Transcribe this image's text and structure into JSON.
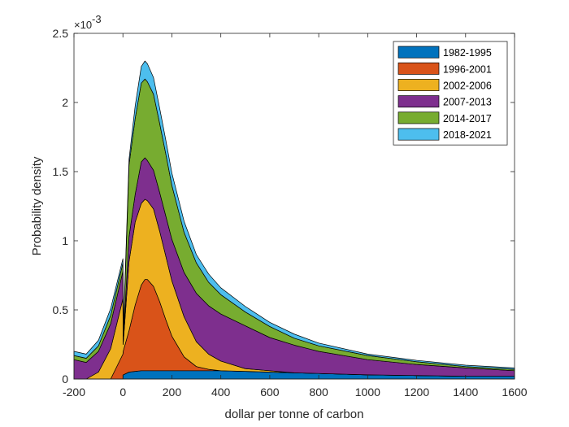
{
  "chart_data": {
    "type": "area",
    "stacked": true,
    "title": "",
    "xlabel": "dollar per tonne of carbon",
    "ylabel": "Probability density",
    "xlim": [
      -200,
      1600
    ],
    "ylim": [
      0,
      0.0025
    ],
    "xticks": [
      -200,
      0,
      200,
      400,
      600,
      800,
      1000,
      1200,
      1400,
      1600
    ],
    "xtick_labels": [
      "-200",
      "0",
      "200",
      "400",
      "600",
      "800",
      "1000",
      "1200",
      "1400",
      "1600"
    ],
    "yticks": [
      0,
      0.0005,
      0.001,
      0.0015,
      0.002,
      0.0025
    ],
    "ytick_labels": [
      "0",
      "0.5",
      "1",
      "1.5",
      "2",
      "2.5"
    ],
    "y_exponent_label": "×10",
    "y_exponent_power": "-3",
    "grid": false,
    "legend_position": "top-right",
    "x": [
      -200,
      -150,
      -100,
      -50,
      0,
      1,
      25,
      50,
      75,
      90,
      100,
      125,
      150,
      175,
      200,
      250,
      300,
      350,
      400,
      500,
      600,
      700,
      800,
      1000,
      1200,
      1400,
      1600
    ],
    "series": [
      {
        "name": "1982-1995",
        "color": "#0072BD",
        "values": [
          0,
          0,
          0,
          0,
          0,
          3e-05,
          5e-05,
          5.5e-05,
          6e-05,
          6e-05,
          6e-05,
          6e-05,
          6e-05,
          6e-05,
          6e-05,
          6e-05,
          6e-05,
          6e-05,
          6e-05,
          5.5e-05,
          5e-05,
          4.5e-05,
          4e-05,
          3e-05,
          2.5e-05,
          2e-05,
          2e-05
        ]
      },
      {
        "name": "1996-2001",
        "color": "#D95319",
        "values": [
          0,
          0,
          0,
          0,
          0.00018,
          0.00017,
          0.0003,
          0.00048,
          0.00062,
          0.00066,
          0.00066,
          0.00061,
          0.0005,
          0.00037,
          0.00025,
          0.0001,
          3e-05,
          1e-05,
          0,
          0,
          0,
          0,
          0,
          0,
          0,
          0,
          0
        ]
      },
      {
        "name": "2002-2006",
        "color": "#EDB120",
        "values": [
          0,
          0,
          5e-05,
          0.00022,
          0.0004,
          5e-05,
          0.0005,
          0.0006,
          0.00059,
          0.00058,
          0.00057,
          0.00056,
          0.00051,
          0.00046,
          0.0004,
          0.00029,
          0.00018,
          0.00011,
          7e-05,
          2e-05,
          1e-05,
          0,
          0,
          0,
          0,
          0,
          0
        ]
      },
      {
        "name": "2007-2013",
        "color": "#7E2F8E",
        "values": [
          0.00014,
          0.00012,
          0.00015,
          0.00018,
          0.0002,
          2e-05,
          0.00018,
          0.0002,
          0.0003,
          0.0003,
          0.00029,
          0.00028,
          0.00028,
          0.00029,
          0.0003,
          0.00032,
          0.00035,
          0.00035,
          0.00034,
          0.00031,
          0.00024,
          0.0002,
          0.00016,
          0.00011,
          8e-05,
          6e-05,
          4e-05
        ]
      },
      {
        "name": "2014-2017",
        "color": "#77AC30",
        "values": [
          3e-05,
          3e-05,
          4e-05,
          6e-05,
          6e-05,
          2e-05,
          0.00052,
          0.00055,
          0.00057,
          0.00057,
          0.00057,
          0.00055,
          0.0005,
          0.00045,
          0.00039,
          0.00029,
          0.00022,
          0.00017,
          0.00014,
          0.0001,
          8e-05,
          5e-05,
          4e-05,
          3e-05,
          2e-05,
          1e-05,
          1e-05
        ]
      },
      {
        "name": "2018-2021",
        "color": "#4DBEEE",
        "values": [
          3e-05,
          3e-05,
          4e-05,
          5e-05,
          3e-05,
          3e-05,
          4e-05,
          9e-05,
          0.00012,
          0.00013,
          0.00013,
          0.00012,
          0.00011,
          0.0001,
          9e-05,
          8e-05,
          6e-05,
          6e-05,
          5e-05,
          4e-05,
          3e-05,
          3e-05,
          2e-05,
          1e-05,
          1e-05,
          1e-05,
          1e-05
        ]
      }
    ]
  }
}
